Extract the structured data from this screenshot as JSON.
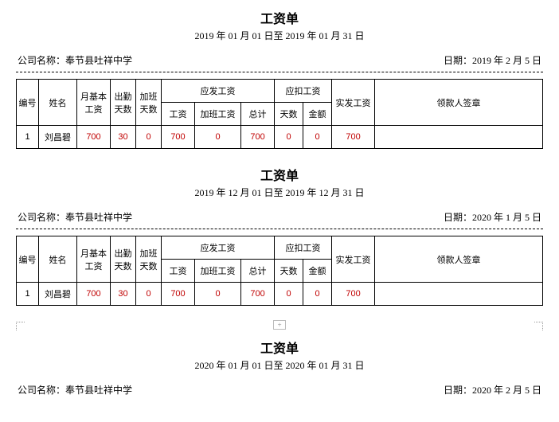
{
  "labels": {
    "title": "工资单",
    "company_prefix": "公司名称：",
    "date_prefix": "日期：",
    "headers": {
      "idx": "编号",
      "name": "姓名",
      "base": "月基本工资",
      "attend_days": "出勤天数",
      "ot_days": "加班天数",
      "should_pay_group": "应发工资",
      "should_wage": "工资",
      "should_ot": "加班工资",
      "should_total": "总计",
      "deduct_group": "应扣工资",
      "deduct_days": "天数",
      "deduct_amount": "金额",
      "net": "实发工资",
      "signature": "领款人签章"
    }
  },
  "slips": [
    {
      "period": "2019 年 01 月 01 日至 2019 年 01 月 31 日",
      "company": "奉节县吐祥中学",
      "date": "2019 年 2 月 5 日",
      "row": {
        "idx": "1",
        "name": "刘昌碧",
        "base": "700",
        "attend_days": "30",
        "ot_days": "0",
        "should_wage": "700",
        "should_ot": "0",
        "should_total": "700",
        "deduct_days": "0",
        "deduct_amount": "0",
        "net": "700",
        "signature": ""
      }
    },
    {
      "period": "2019 年 12 月 01 日至 2019 年 12 月 31 日",
      "company": "奉节县吐祥中学",
      "date": "2020 年 1 月 5 日",
      "row": {
        "idx": "1",
        "name": "刘昌碧",
        "base": "700",
        "attend_days": "30",
        "ot_days": "0",
        "should_wage": "700",
        "should_ot": "0",
        "should_total": "700",
        "deduct_days": "0",
        "deduct_amount": "0",
        "net": "700",
        "signature": ""
      }
    },
    {
      "period": "2020 年 01 月 01 日至 2020 年 01 月 31 日",
      "company": "奉节县吐祥中学",
      "date": "2020 年 2 月 5 日",
      "row": null
    }
  ]
}
